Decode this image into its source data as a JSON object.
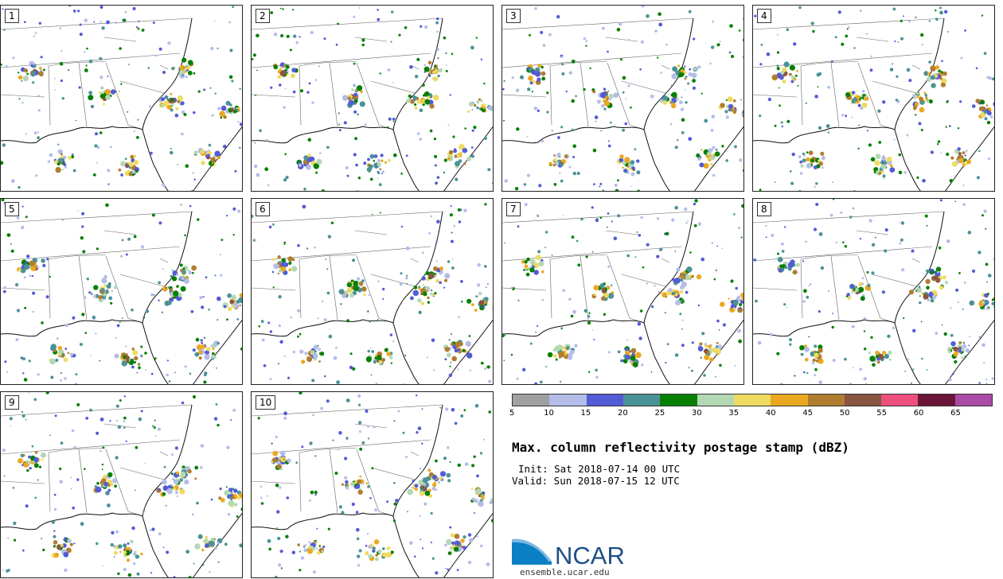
{
  "figure": {
    "title": "Max. column reflectivity postage stamp (dBZ)",
    "init": "Init: Sat 2018-07-14 00 UTC",
    "valid": "Valid: Sun 2018-07-15 12 UTC"
  },
  "members": [
    "1",
    "2",
    "3",
    "4",
    "5",
    "6",
    "7",
    "8",
    "9",
    "10"
  ],
  "colorbar": {
    "ticks": [
      "5",
      "10",
      "15",
      "20",
      "25",
      "30",
      "35",
      "40",
      "45",
      "50",
      "55",
      "60",
      "65"
    ],
    "colors": [
      "#a0a0a0",
      "#b4bce8",
      "#535bd6",
      "#4b9297",
      "#078004",
      "#b4d8b4",
      "#eedb60",
      "#eaa821",
      "#b07d30",
      "#895540",
      "#ee507e",
      "#6b1538",
      "#aa4ba8"
    ]
  },
  "logo": {
    "name": "NCAR",
    "url": "ensemble.ucar.edu"
  }
}
